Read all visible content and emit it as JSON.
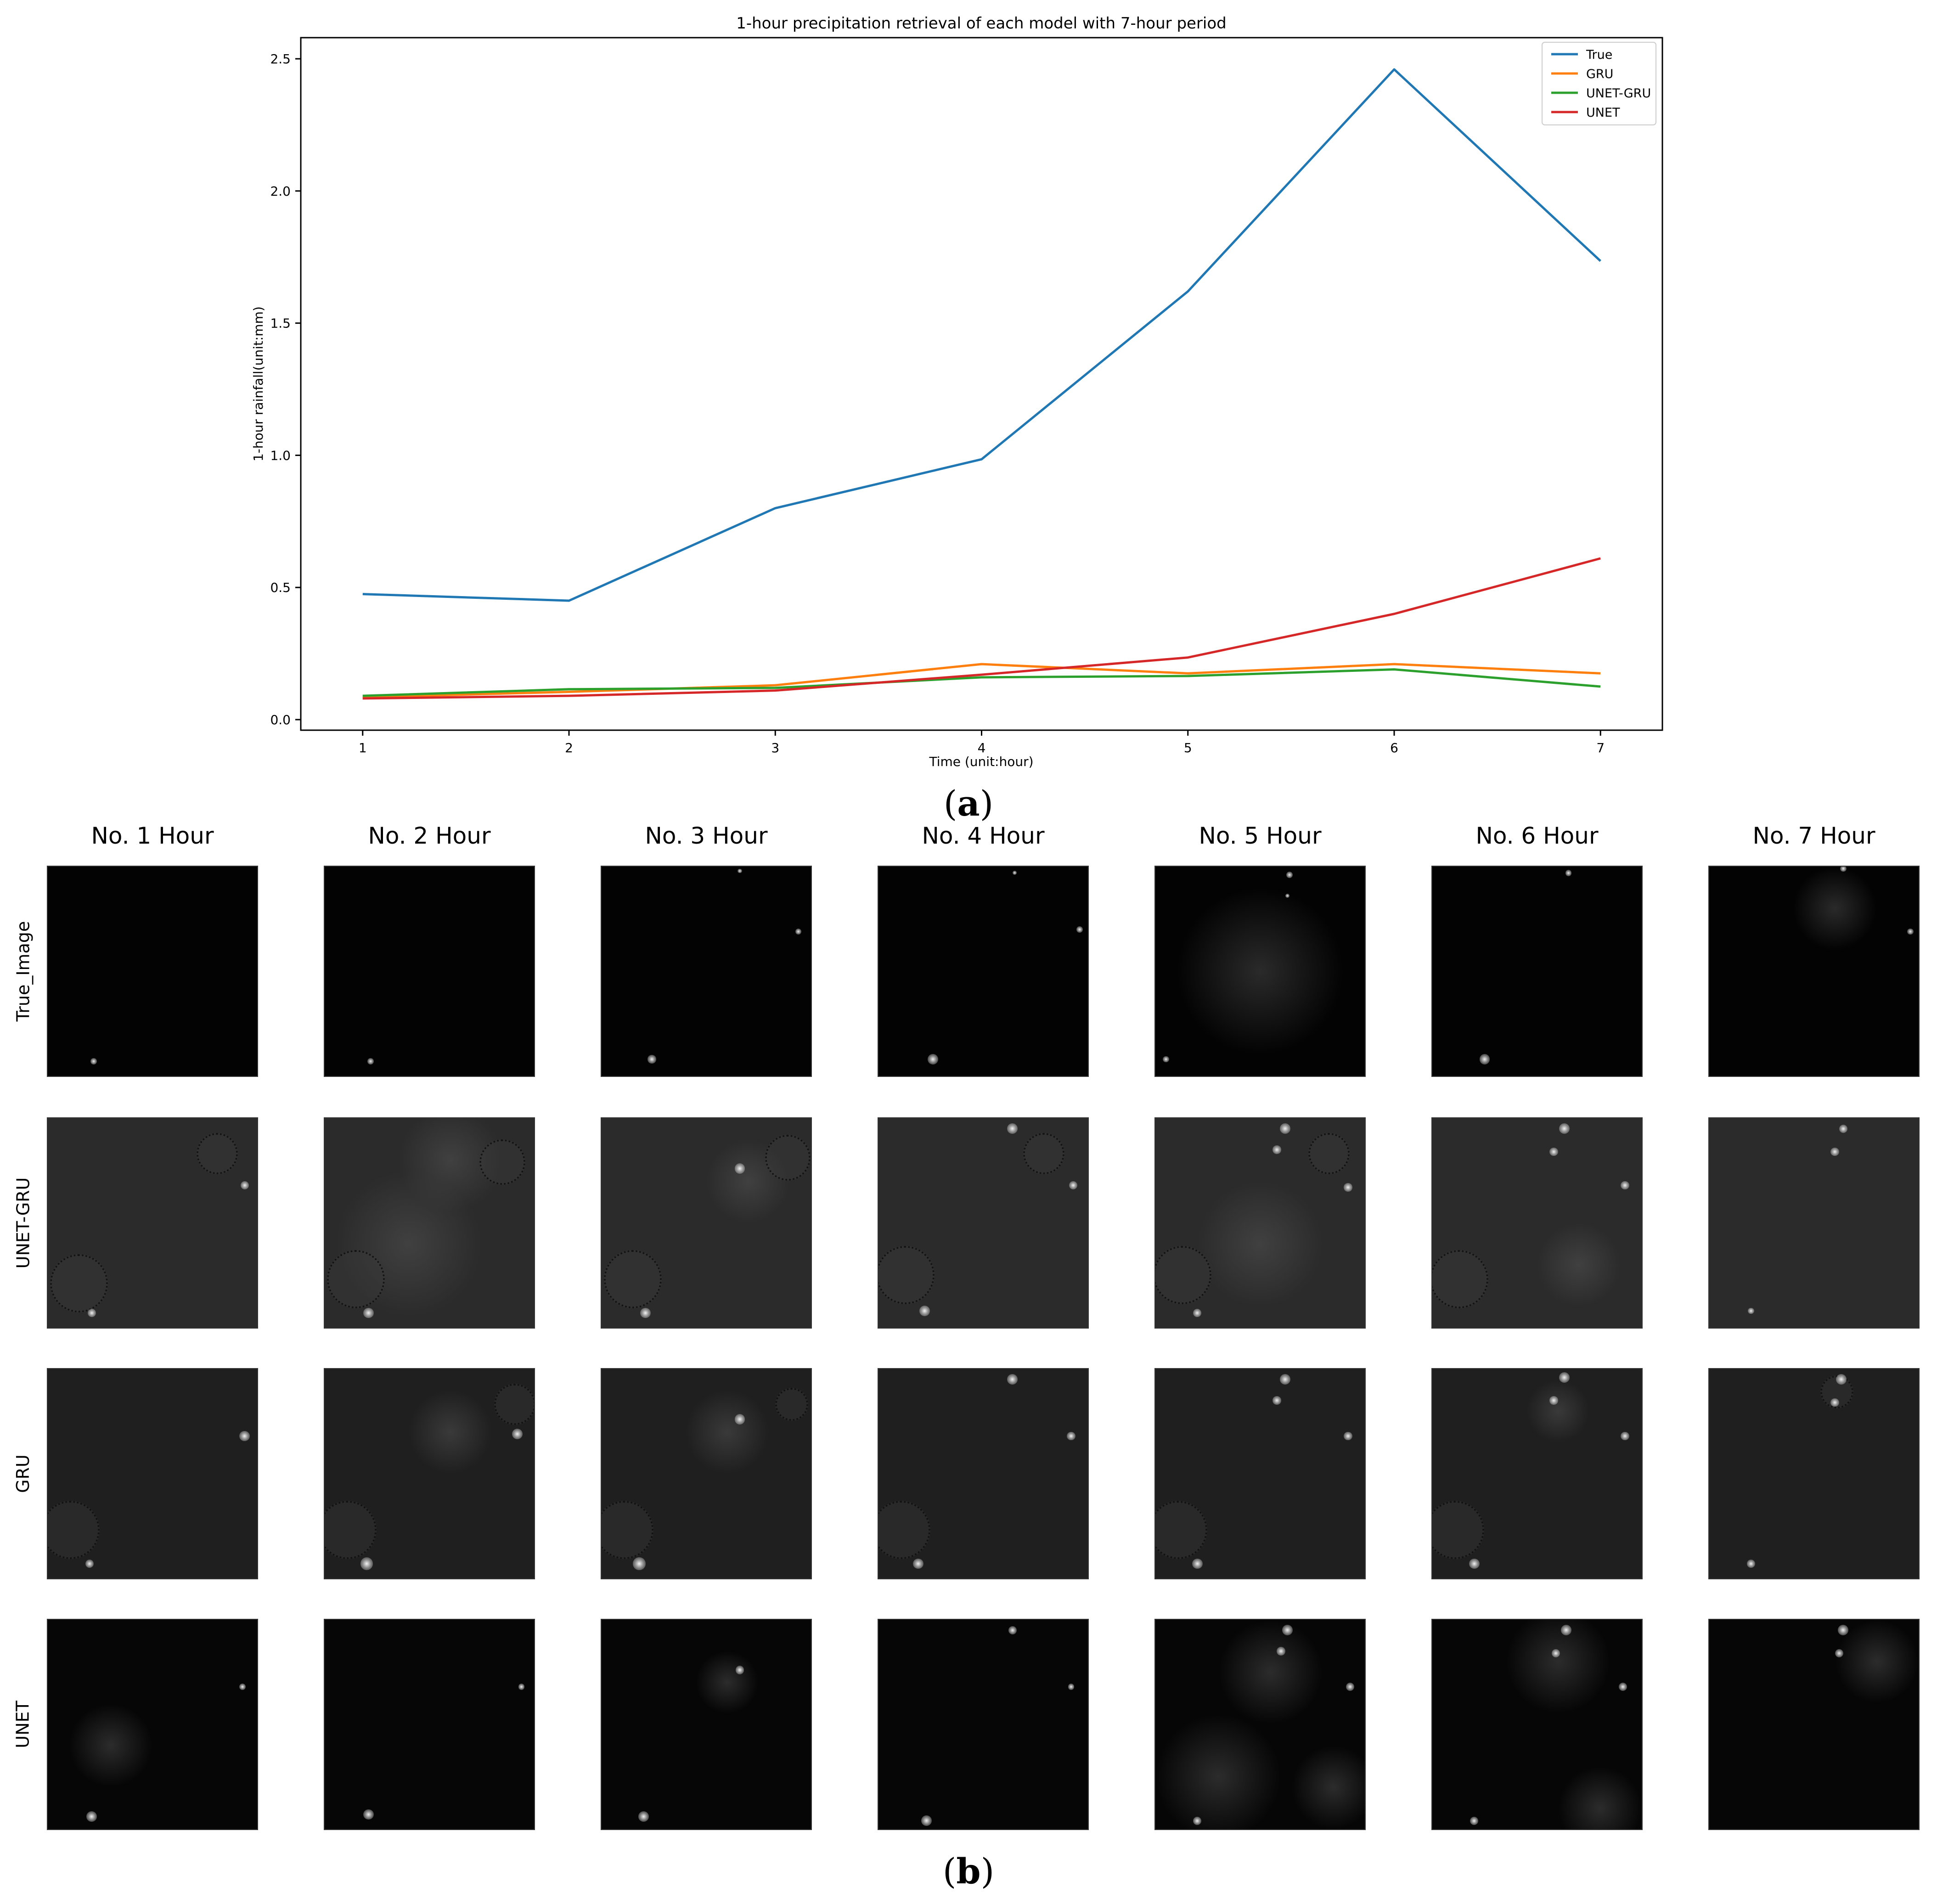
{
  "chart_data": {
    "type": "line",
    "title": "1-hour precipitation retrieval of each model with 7-hour period",
    "xlabel": "Time (unit:hour)",
    "ylabel": "1-hour rainfall(unit:mm)",
    "x": [
      1,
      2,
      3,
      4,
      5,
      6,
      7
    ],
    "xlim": [
      0.7,
      7.3
    ],
    "ylim": [
      -0.04,
      2.58
    ],
    "xticks": [
      1,
      2,
      3,
      4,
      5,
      6,
      7
    ],
    "yticks": [
      0.0,
      0.5,
      1.0,
      1.5,
      2.0,
      2.5
    ],
    "ytick_labels": [
      "0.0",
      "0.5",
      "1.0",
      "1.5",
      "2.0",
      "2.5"
    ],
    "grid": false,
    "legend_position": "top-right",
    "series": [
      {
        "name": "True",
        "color": "#1f77b4",
        "values": [
          0.475,
          0.45,
          0.8,
          0.985,
          1.62,
          2.46,
          1.735
        ]
      },
      {
        "name": "GRU",
        "color": "#ff7f0e",
        "values": [
          0.085,
          0.105,
          0.13,
          0.21,
          0.175,
          0.21,
          0.175
        ]
      },
      {
        "name": "UNET-GRU",
        "color": "#2ca02c",
        "values": [
          0.09,
          0.115,
          0.12,
          0.16,
          0.165,
          0.19,
          0.125
        ]
      },
      {
        "name": "UNET",
        "color": "#d62728",
        "values": [
          0.08,
          0.09,
          0.11,
          0.17,
          0.235,
          0.4,
          0.61
        ]
      }
    ]
  },
  "panel_labels": {
    "a_open": "(",
    "a_letter": "a",
    "a_close": ")",
    "b_open": "(",
    "b_letter": "b",
    "b_close": ")"
  },
  "image_grid": {
    "columns": [
      "No. 1 Hour",
      "No. 2 Hour",
      "No. 3 Hour",
      "No. 4 Hour",
      "No. 5 Hour",
      "No. 6 Hour",
      "No. 7 Hour"
    ],
    "rows": [
      "True_Image",
      "UNET-GRU",
      "GRU",
      "UNET"
    ]
  }
}
